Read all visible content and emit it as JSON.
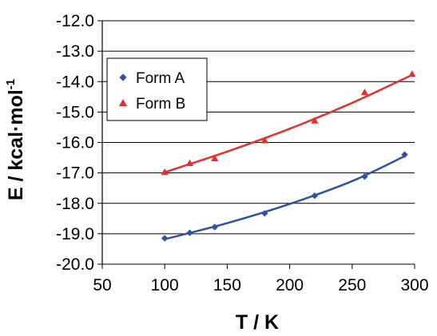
{
  "chart_data": {
    "type": "scatter",
    "xlabel": "T / K",
    "ylabel_main": "E / kcal·mol",
    "ylabel_sup": "-1",
    "xlim": [
      50,
      300
    ],
    "ylim": [
      -20.0,
      -12.0
    ],
    "x_ticks": [
      "50",
      "100",
      "150",
      "200",
      "250",
      "300"
    ],
    "y_ticks": [
      "-12.0",
      "-13.0",
      "-14.0",
      "-15.0",
      "-16.0",
      "-17.0",
      "-18.0",
      "-19.0",
      "-20.0"
    ],
    "grid": "horizontal",
    "legend_position": "upper-left",
    "series": [
      {
        "name": "Form A",
        "marker": "diamond",
        "color": "#3050a0",
        "x": [
          100,
          120,
          140,
          180,
          220,
          260,
          292
        ],
        "y": [
          -19.15,
          -18.97,
          -18.78,
          -18.33,
          -17.75,
          -17.12,
          -16.4
        ],
        "fit_x": [
          100,
          150,
          200,
          250,
          292
        ],
        "fit_y": [
          -19.18,
          -18.65,
          -18.02,
          -17.27,
          -16.45
        ]
      },
      {
        "name": "Form B",
        "marker": "triangle",
        "color": "#e03030",
        "x": [
          100,
          120,
          140,
          180,
          220,
          260,
          298
        ],
        "y": [
          -16.97,
          -16.68,
          -16.52,
          -15.93,
          -15.28,
          -14.35,
          -13.75
        ],
        "fit_x": [
          100,
          150,
          200,
          250,
          298
        ],
        "fit_y": [
          -16.98,
          -16.3,
          -15.55,
          -14.7,
          -13.78
        ]
      }
    ]
  }
}
